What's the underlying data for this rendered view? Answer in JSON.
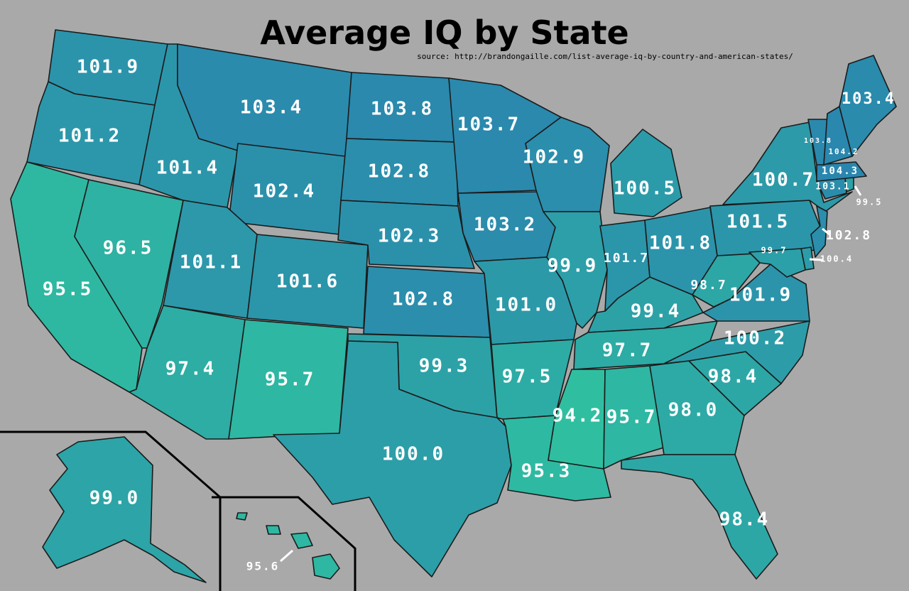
{
  "title": "Average IQ by State",
  "source": "source: http://brandongaille.com/list-average-iq-by-country-and-american-states/",
  "color_scale": {
    "low": "#2fbfa0",
    "high": "#2a86ae",
    "min": 94.2,
    "max": 104.3,
    "background": "#a9a9a9"
  },
  "states": [
    {
      "code": "WA",
      "value": "101.9"
    },
    {
      "code": "OR",
      "value": "101.2"
    },
    {
      "code": "CA",
      "value": "95.5"
    },
    {
      "code": "NV",
      "value": "96.5"
    },
    {
      "code": "ID",
      "value": "101.4"
    },
    {
      "code": "MT",
      "value": "103.4"
    },
    {
      "code": "WY",
      "value": "102.4"
    },
    {
      "code": "UT",
      "value": "101.1"
    },
    {
      "code": "AZ",
      "value": "97.4"
    },
    {
      "code": "CO",
      "value": "101.6"
    },
    {
      "code": "NM",
      "value": "95.7"
    },
    {
      "code": "ND",
      "value": "103.8"
    },
    {
      "code": "SD",
      "value": "102.8"
    },
    {
      "code": "NE",
      "value": "102.3"
    },
    {
      "code": "KS",
      "value": "102.8"
    },
    {
      "code": "OK",
      "value": "99.3"
    },
    {
      "code": "TX",
      "value": "100.0"
    },
    {
      "code": "MN",
      "value": "103.7"
    },
    {
      "code": "IA",
      "value": "103.2"
    },
    {
      "code": "MO",
      "value": "101.0"
    },
    {
      "code": "AR",
      "value": "97.5"
    },
    {
      "code": "LA",
      "value": "95.3"
    },
    {
      "code": "WI",
      "value": "102.9"
    },
    {
      "code": "IL",
      "value": "99.9"
    },
    {
      "code": "MI",
      "value": "100.5"
    },
    {
      "code": "IN",
      "value": "101.7"
    },
    {
      "code": "OH",
      "value": "101.8"
    },
    {
      "code": "KY",
      "value": "99.4"
    },
    {
      "code": "TN",
      "value": "97.7"
    },
    {
      "code": "MS",
      "value": "94.2"
    },
    {
      "code": "AL",
      "value": "95.7"
    },
    {
      "code": "GA",
      "value": "98.0"
    },
    {
      "code": "FL",
      "value": "98.4"
    },
    {
      "code": "SC",
      "value": "98.4"
    },
    {
      "code": "NC",
      "value": "100.2"
    },
    {
      "code": "VA",
      "value": "101.9"
    },
    {
      "code": "WV",
      "value": "98.7"
    },
    {
      "code": "PA",
      "value": "101.5"
    },
    {
      "code": "NY",
      "value": "100.7"
    },
    {
      "code": "NJ",
      "value": "102.8"
    },
    {
      "code": "DE",
      "value": "100.4"
    },
    {
      "code": "MD",
      "value": "99.7"
    },
    {
      "code": "CT",
      "value": "103.1"
    },
    {
      "code": "RI",
      "value": "99.5"
    },
    {
      "code": "MA",
      "value": "104.3"
    },
    {
      "code": "VT",
      "value": "103.8"
    },
    {
      "code": "NH",
      "value": "104.2"
    },
    {
      "code": "ME",
      "value": "103.4"
    },
    {
      "code": "AK",
      "value": "99.0"
    },
    {
      "code": "HI",
      "value": "95.6"
    }
  ]
}
